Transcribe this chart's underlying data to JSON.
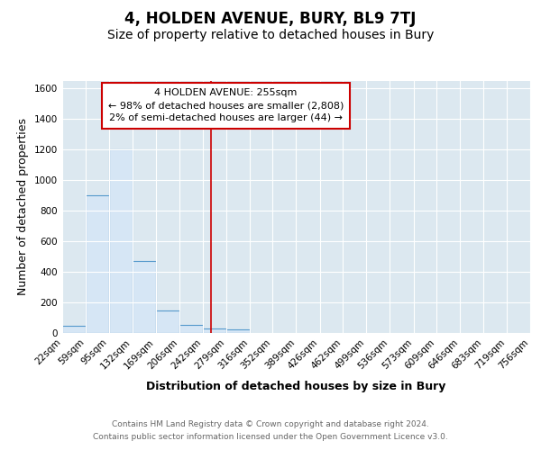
{
  "title": "4, HOLDEN AVENUE, BURY, BL9 7TJ",
  "subtitle": "Size of property relative to detached houses in Bury",
  "xlabel": "Distribution of detached houses by size in Bury",
  "ylabel": "Number of detached properties",
  "bin_edges": [
    22,
    59,
    95,
    132,
    169,
    206,
    242,
    279,
    316,
    352,
    389,
    426,
    462,
    499,
    536,
    573,
    609,
    646,
    683,
    719,
    756
  ],
  "bar_heights": [
    50,
    900,
    1200,
    470,
    150,
    55,
    30,
    25,
    0,
    0,
    0,
    0,
    0,
    0,
    0,
    0,
    0,
    0,
    0,
    0
  ],
  "bar_color": "#d6e6f5",
  "bar_edge_color": "#5599cc",
  "property_line_x": 255,
  "property_line_color": "#cc0000",
  "annotation_line1": "4 HOLDEN AVENUE: 255sqm",
  "annotation_line2": "← 98% of detached houses are smaller (2,808)",
  "annotation_line3": "2% of semi-detached houses are larger (44) →",
  "annotation_box_facecolor": "#ffffff",
  "annotation_border_color": "#cc0000",
  "ylim": [
    0,
    1650
  ],
  "yticks": [
    0,
    200,
    400,
    600,
    800,
    1000,
    1200,
    1400,
    1600
  ],
  "background_color": "#ffffff",
  "plot_bg_color": "#dce8f0",
  "grid_color": "#ffffff",
  "footer_line1": "Contains HM Land Registry data © Crown copyright and database right 2024.",
  "footer_line2": "Contains public sector information licensed under the Open Government Licence v3.0.",
  "title_fontsize": 12,
  "subtitle_fontsize": 10,
  "axis_label_fontsize": 9,
  "tick_fontsize": 7.5,
  "annotation_fontsize": 8,
  "footer_fontsize": 6.5
}
